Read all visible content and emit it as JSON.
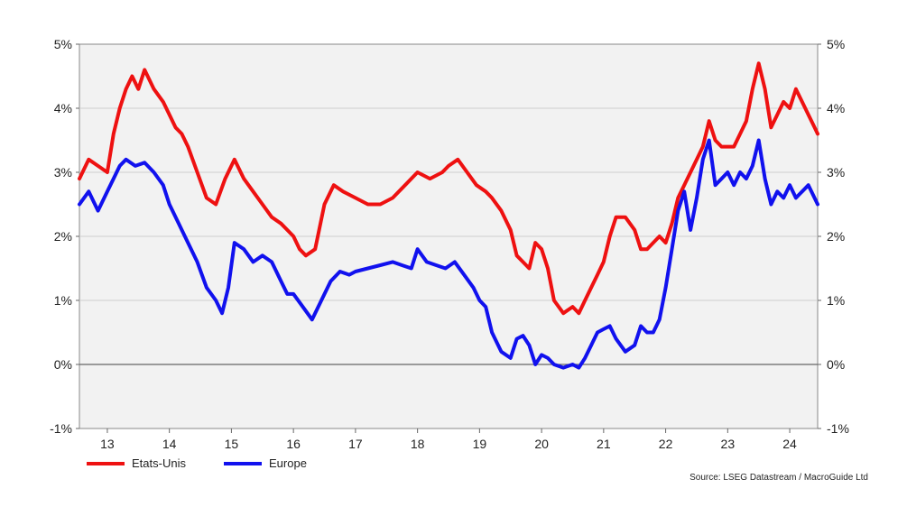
{
  "chart_data": {
    "type": "line",
    "title": "",
    "xlabel": "",
    "ylabel": "",
    "ylim": [
      -1,
      5
    ],
    "xlim": [
      2012.55,
      2024.45
    ],
    "grid": true,
    "legend_position": "bottom-left",
    "y_ticks": [
      5,
      4,
      3,
      2,
      1,
      0,
      -1
    ],
    "y_tick_labels": [
      "5%",
      "4%",
      "3%",
      "2%",
      "1%",
      "0%",
      "-1%"
    ],
    "x_tick_labels": [
      "13",
      "14",
      "15",
      "16",
      "17",
      "18",
      "19",
      "20",
      "21",
      "22",
      "23",
      "24"
    ],
    "x_tick_positions": [
      2013.0,
      2014.0,
      2015.0,
      2016.0,
      2017.0,
      2018.0,
      2019.0,
      2020.0,
      2021.0,
      2022.0,
      2023.0,
      2024.0
    ],
    "source": "Source: LSEG Datastream / MacroGuide Ltd",
    "series": [
      {
        "name": "Etats-Unis",
        "color": "#ee1111",
        "x": [
          2012.55,
          2012.7,
          2012.85,
          2013.0,
          2013.1,
          2013.2,
          2013.3,
          2013.4,
          2013.5,
          2013.6,
          2013.75,
          2013.9,
          2014.0,
          2014.1,
          2014.2,
          2014.3,
          2014.45,
          2014.6,
          2014.75,
          2014.9,
          2015.05,
          2015.2,
          2015.35,
          2015.5,
          2015.65,
          2015.8,
          2015.9,
          2016.0,
          2016.1,
          2016.2,
          2016.35,
          2016.5,
          2016.65,
          2016.8,
          2017.0,
          2017.2,
          2017.4,
          2017.6,
          2017.8,
          2018.0,
          2018.2,
          2018.4,
          2018.5,
          2018.65,
          2018.8,
          2018.95,
          2019.1,
          2019.2,
          2019.35,
          2019.5,
          2019.6,
          2019.7,
          2019.8,
          2019.9,
          2020.0,
          2020.1,
          2020.2,
          2020.35,
          2020.5,
          2020.6,
          2020.7,
          2020.8,
          2020.9,
          2021.0,
          2021.1,
          2021.2,
          2021.35,
          2021.5,
          2021.6,
          2021.7,
          2021.8,
          2021.9,
          2022.0,
          2022.1,
          2022.2,
          2022.3,
          2022.4,
          2022.5,
          2022.6,
          2022.7,
          2022.8,
          2022.9,
          2023.0,
          2023.1,
          2023.2,
          2023.3,
          2023.4,
          2023.5,
          2023.6,
          2023.7,
          2023.8,
          2023.9,
          2024.0,
          2024.1,
          2024.2,
          2024.3,
          2024.4,
          2024.45
        ],
        "values": [
          2.9,
          3.2,
          3.1,
          3.0,
          3.6,
          4.0,
          4.3,
          4.5,
          4.3,
          4.6,
          4.3,
          4.1,
          3.9,
          3.7,
          3.6,
          3.4,
          3.0,
          2.6,
          2.5,
          2.9,
          3.2,
          2.9,
          2.7,
          2.5,
          2.3,
          2.2,
          2.1,
          2.0,
          1.8,
          1.7,
          1.8,
          2.5,
          2.8,
          2.7,
          2.6,
          2.5,
          2.5,
          2.6,
          2.8,
          3.0,
          2.9,
          3.0,
          3.1,
          3.2,
          3.0,
          2.8,
          2.7,
          2.6,
          2.4,
          2.1,
          1.7,
          1.6,
          1.5,
          1.9,
          1.8,
          1.5,
          1.0,
          0.8,
          0.9,
          0.8,
          1.0,
          1.2,
          1.4,
          1.6,
          2.0,
          2.3,
          2.3,
          2.1,
          1.8,
          1.8,
          1.9,
          2.0,
          1.9,
          2.2,
          2.6,
          2.8,
          3.0,
          3.2,
          3.4,
          3.8,
          3.5,
          3.4,
          3.4,
          3.4,
          3.6,
          3.8,
          4.3,
          4.7,
          4.3,
          3.7,
          3.9,
          4.1,
          4.0,
          4.3,
          4.1,
          3.9,
          3.7,
          3.6
        ]
      },
      {
        "name": "Europe",
        "color": "#1111ee",
        "x": [
          2012.55,
          2012.7,
          2012.85,
          2013.0,
          2013.1,
          2013.2,
          2013.3,
          2013.45,
          2013.6,
          2013.75,
          2013.9,
          2014.0,
          2014.15,
          2014.3,
          2014.45,
          2014.6,
          2014.75,
          2014.85,
          2014.95,
          2015.05,
          2015.2,
          2015.35,
          2015.5,
          2015.65,
          2015.8,
          2015.9,
          2016.0,
          2016.15,
          2016.3,
          2016.45,
          2016.6,
          2016.75,
          2016.9,
          2017.0,
          2017.2,
          2017.4,
          2017.6,
          2017.75,
          2017.9,
          2018.0,
          2018.15,
          2018.3,
          2018.45,
          2018.6,
          2018.75,
          2018.9,
          2019.0,
          2019.1,
          2019.2,
          2019.35,
          2019.5,
          2019.6,
          2019.7,
          2019.8,
          2019.9,
          2020.0,
          2020.1,
          2020.2,
          2020.35,
          2020.5,
          2020.6,
          2020.7,
          2020.8,
          2020.9,
          2021.0,
          2021.1,
          2021.2,
          2021.35,
          2021.5,
          2021.6,
          2021.7,
          2021.8,
          2021.9,
          2022.0,
          2022.1,
          2022.2,
          2022.3,
          2022.4,
          2022.5,
          2022.6,
          2022.7,
          2022.8,
          2022.9,
          2023.0,
          2023.1,
          2023.2,
          2023.3,
          2023.4,
          2023.5,
          2023.6,
          2023.7,
          2023.8,
          2023.9,
          2024.0,
          2024.1,
          2024.2,
          2024.3,
          2024.45
        ],
        "values": [
          2.5,
          2.7,
          2.4,
          2.7,
          2.9,
          3.1,
          3.2,
          3.1,
          3.15,
          3.0,
          2.8,
          2.5,
          2.2,
          1.9,
          1.6,
          1.2,
          1.0,
          0.8,
          1.2,
          1.9,
          1.8,
          1.6,
          1.7,
          1.6,
          1.3,
          1.1,
          1.1,
          0.9,
          0.7,
          1.0,
          1.3,
          1.45,
          1.4,
          1.45,
          1.5,
          1.55,
          1.6,
          1.55,
          1.5,
          1.8,
          1.6,
          1.55,
          1.5,
          1.6,
          1.4,
          1.2,
          1.0,
          0.9,
          0.5,
          0.2,
          0.1,
          0.4,
          0.45,
          0.3,
          0.0,
          0.15,
          0.1,
          0.0,
          -0.05,
          0.0,
          -0.05,
          0.1,
          0.3,
          0.5,
          0.55,
          0.6,
          0.4,
          0.2,
          0.3,
          0.6,
          0.5,
          0.5,
          0.7,
          1.2,
          1.8,
          2.4,
          2.7,
          2.1,
          2.6,
          3.2,
          3.5,
          2.8,
          2.9,
          3.0,
          2.8,
          3.0,
          2.9,
          3.1,
          3.5,
          2.9,
          2.5,
          2.7,
          2.6,
          2.8,
          2.6,
          2.7,
          2.8,
          2.5
        ]
      }
    ]
  }
}
